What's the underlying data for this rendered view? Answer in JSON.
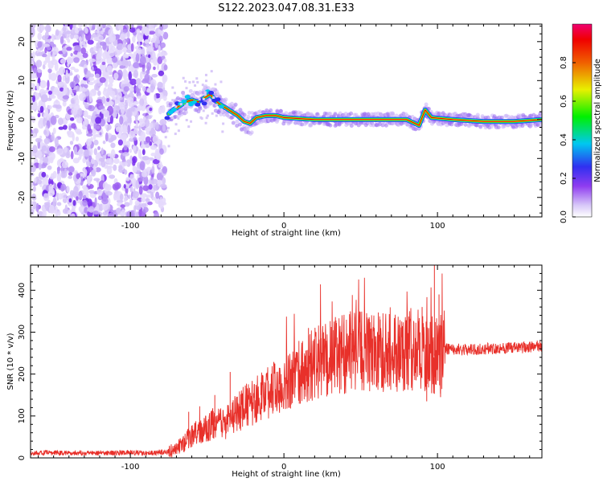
{
  "title": "S122.2023.047.08.31.E33",
  "chart_data": [
    {
      "type": "heatmap",
      "xlabel": "Height of straight line (km)",
      "ylabel": "Frequency (Hz)",
      "xlim": [
        -165,
        168
      ],
      "ylim": [
        -25,
        24.5
      ],
      "xticks": [
        -100,
        0,
        100
      ],
      "yticks": [
        -20,
        -10,
        0,
        10,
        20
      ],
      "grid": false,
      "noise_region_x": [
        -165,
        -77
      ],
      "signal_trace": [
        {
          "x": -75,
          "y": 1.5
        },
        {
          "x": -72,
          "y": 2.5
        },
        {
          "x": -68,
          "y": 3.5
        },
        {
          "x": -64,
          "y": 4.5
        },
        {
          "x": -60,
          "y": 5
        },
        {
          "x": -56,
          "y": 4.5
        },
        {
          "x": -52,
          "y": 5.5
        },
        {
          "x": -48,
          "y": 6.5
        },
        {
          "x": -45,
          "y": 5
        },
        {
          "x": -42,
          "y": 4
        },
        {
          "x": -38,
          "y": 3
        },
        {
          "x": -34,
          "y": 2
        },
        {
          "x": -30,
          "y": 1
        },
        {
          "x": -26,
          "y": -0.5
        },
        {
          "x": -22,
          "y": -1
        },
        {
          "x": -18,
          "y": 0.5
        },
        {
          "x": -12,
          "y": 1
        },
        {
          "x": -5,
          "y": 1
        },
        {
          "x": 0,
          "y": 0.5
        },
        {
          "x": 20,
          "y": 0
        },
        {
          "x": 50,
          "y": 0
        },
        {
          "x": 80,
          "y": 0
        },
        {
          "x": 88,
          "y": -1.5
        },
        {
          "x": 92,
          "y": 2.5
        },
        {
          "x": 96,
          "y": 0.5
        },
        {
          "x": 110,
          "y": 0
        },
        {
          "x": 130,
          "y": -0.5
        },
        {
          "x": 150,
          "y": -0.5
        },
        {
          "x": 168,
          "y": 0
        }
      ],
      "colorbar": {
        "label": "Normalized spectral amplitude",
        "ticks": [
          "0.0",
          "0.2",
          "0.4",
          "0.6",
          "0.8"
        ],
        "colors": [
          "#ffffff",
          "#d8c8f8",
          "#8f3cf0",
          "#3030f0",
          "#00c8f0",
          "#00f000",
          "#e8f000",
          "#f06000",
          "#f00000",
          "#f00070"
        ]
      }
    },
    {
      "type": "line",
      "xlabel": "Height of straight line (km)",
      "ylabel": "SNR (10 * v/v)",
      "xlim": [
        -165,
        168
      ],
      "ylim": [
        0,
        460
      ],
      "xticks": [
        -100,
        0,
        100
      ],
      "yticks": [
        0,
        100,
        200,
        300,
        400
      ],
      "grid": false,
      "color": "#e8302a",
      "series": [
        {
          "x": [
            -165,
            -150,
            -130,
            -110,
            -90,
            -78,
            -72,
            -65,
            -60,
            -55,
            -50,
            -45,
            -40,
            -35,
            -30,
            -25,
            -20,
            -15,
            -10,
            -5,
            0,
            5,
            10,
            15,
            20,
            25,
            30,
            35,
            40,
            45,
            50,
            55,
            60,
            65,
            70,
            75,
            80,
            85,
            90,
            95,
            100,
            103,
            105,
            110,
            120,
            130,
            140,
            150,
            160,
            168
          ],
          "values": [
            12,
            12,
            12,
            12,
            12,
            13,
            18,
            35,
            55,
            60,
            70,
            85,
            80,
            90,
            110,
            125,
            130,
            150,
            160,
            170,
            185,
            190,
            200,
            210,
            225,
            230,
            240,
            245,
            250,
            255,
            255,
            250,
            250,
            255,
            255,
            250,
            255,
            260,
            255,
            250,
            240,
            255,
            260,
            260,
            258,
            260,
            262,
            262,
            265,
            268
          ]
        }
      ],
      "peaks": [
        {
          "x": -62,
          "y": 110
        },
        {
          "x": -45,
          "y": 150
        },
        {
          "x": -35,
          "y": 205
        },
        {
          "x": -15,
          "y": 180
        },
        {
          "x": -3,
          "y": 215
        },
        {
          "x": 16,
          "y": 310
        },
        {
          "x": 50,
          "y": 300
        },
        {
          "x": 75,
          "y": 290
        },
        {
          "x": 90,
          "y": 360
        },
        {
          "x": 98,
          "y": 460
        },
        {
          "x": 101,
          "y": 390
        },
        {
          "x": 93,
          "y": 135
        },
        {
          "x": 102,
          "y": 145
        }
      ]
    }
  ]
}
